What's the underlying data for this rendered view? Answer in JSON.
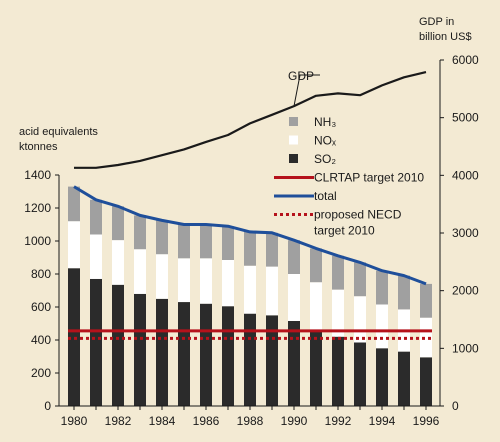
{
  "chart_data": {
    "type": "bar",
    "stacked": true,
    "categories": [
      "1980",
      "1981",
      "1982",
      "1983",
      "1984",
      "1985",
      "1986",
      "1987",
      "1988",
      "1989",
      "1990",
      "1991",
      "1992",
      "1993",
      "1994",
      "1995",
      "1996"
    ],
    "x_tick_labels": [
      "1980",
      "1982",
      "1984",
      "1986",
      "1988",
      "1990",
      "1992",
      "1994",
      "1996"
    ],
    "left_axis": {
      "label_line1": "acid equivalents",
      "label_line2": "ktonnes",
      "ylim": [
        0,
        1400
      ],
      "ticks": [
        0,
        200,
        400,
        600,
        800,
        1000,
        1200,
        1400
      ]
    },
    "right_axis": {
      "label_line1": "GDP in",
      "label_line2": "billion US$",
      "ylim": [
        0,
        6000
      ],
      "ticks": [
        0,
        1000,
        2000,
        3000,
        4000,
        5000,
        6000
      ]
    },
    "series": [
      {
        "name": "SO₂",
        "color": "#2b2b2b",
        "values": [
          835,
          770,
          735,
          680,
          650,
          630,
          620,
          605,
          560,
          550,
          515,
          460,
          420,
          385,
          350,
          330,
          295
        ]
      },
      {
        "name": "NOₓ",
        "color": "#ffffff",
        "values": [
          285,
          270,
          270,
          270,
          270,
          265,
          275,
          280,
          290,
          295,
          285,
          290,
          285,
          280,
          265,
          255,
          240
        ]
      },
      {
        "name": "NH₃",
        "color": "#a0a0a0",
        "values": [
          210,
          210,
          205,
          205,
          205,
          205,
          205,
          205,
          205,
          205,
          205,
          205,
          205,
          205,
          205,
          205,
          205
        ]
      }
    ],
    "lines": [
      {
        "name": "total",
        "color": "#1f4f9a",
        "axis": "left",
        "values": [
          1330,
          1250,
          1210,
          1155,
          1125,
          1100,
          1100,
          1090,
          1055,
          1050,
          1005,
          955,
          910,
          870,
          820,
          790,
          740
        ]
      },
      {
        "name": "GDP",
        "axis": "right",
        "color": "#1a1a1a",
        "values": [
          4130,
          4130,
          4180,
          4250,
          4350,
          4450,
          4580,
          4700,
          4900,
          5050,
          5200,
          5380,
          5420,
          5390,
          5560,
          5700,
          5790
        ]
      }
    ],
    "targets": [
      {
        "name": "CLRTAP target 2010",
        "color": "#b5121b",
        "style": "solid",
        "value": 455
      },
      {
        "name": "proposed NECD target 2010",
        "color": "#b5121b",
        "style": "dotted",
        "value": 410
      }
    ],
    "legend": [
      {
        "kind": "square",
        "color": "#a0a0a0",
        "label": "NH₃"
      },
      {
        "kind": "square",
        "color": "#ffffff",
        "label": "NOₓ"
      },
      {
        "kind": "square",
        "color": "#2b2b2b",
        "label": "SO₂"
      },
      {
        "kind": "line",
        "color": "#b5121b",
        "style": "solid",
        "label": "CLRTAP target 2010"
      },
      {
        "kind": "line",
        "color": "#1f4f9a",
        "style": "solid",
        "label": "total"
      },
      {
        "kind": "line",
        "color": "#b5121b",
        "style": "dotted",
        "label": "proposed NECD",
        "label2": "target 2010"
      }
    ],
    "gdp_label": "GDP",
    "legend_placement": "right, inside plot",
    "grid": false
  }
}
